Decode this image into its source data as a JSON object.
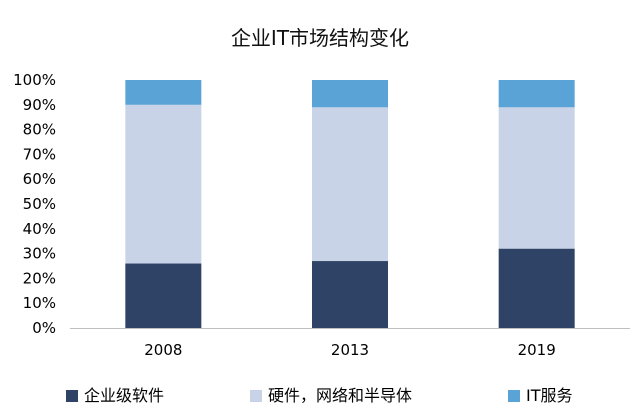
{
  "chart_data": {
    "type": "bar",
    "stacked": true,
    "title": "企业IT市场结构变化",
    "categories": [
      "2008",
      "2013",
      "2019"
    ],
    "series": [
      {
        "name": "企业级软件",
        "values": [
          26,
          27,
          32
        ],
        "color": "#2e4366"
      },
      {
        "name": "硬件，网络和半导体",
        "values": [
          64,
          62,
          57
        ],
        "color": "#c8d3e8"
      },
      {
        "name": "IT服务",
        "values": [
          10,
          11,
          11
        ],
        "color": "#5aa3d6"
      }
    ],
    "y_ticks": [
      "0%",
      "10%",
      "20%",
      "30%",
      "40%",
      "50%",
      "60%",
      "70%",
      "80%",
      "90%",
      "100%"
    ],
    "ylim": [
      0,
      100
    ],
    "grid": false,
    "legend_position": "bottom"
  }
}
